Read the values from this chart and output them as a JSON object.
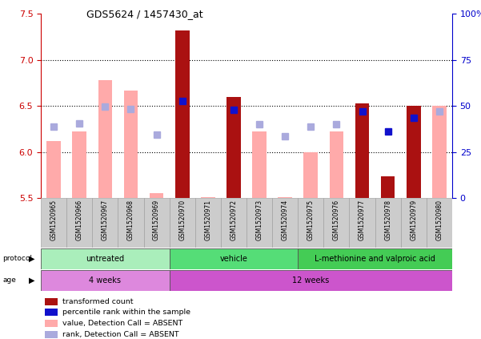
{
  "title": "GDS5624 / 1457430_at",
  "samples": [
    "GSM1520965",
    "GSM1520966",
    "GSM1520967",
    "GSM1520968",
    "GSM1520969",
    "GSM1520970",
    "GSM1520971",
    "GSM1520972",
    "GSM1520973",
    "GSM1520974",
    "GSM1520975",
    "GSM1520976",
    "GSM1520977",
    "GSM1520978",
    "GSM1520979",
    "GSM1520980"
  ],
  "transformed_count": [
    6.12,
    6.22,
    6.78,
    6.67,
    5.56,
    7.32,
    5.51,
    6.6,
    6.22,
    5.51,
    6.0,
    6.22,
    6.53,
    5.74,
    6.5,
    6.5
  ],
  "transformed_count_absent": [
    true,
    true,
    true,
    true,
    true,
    false,
    true,
    false,
    true,
    true,
    true,
    true,
    false,
    false,
    false,
    true
  ],
  "percentile_rank_val": [
    6.28,
    6.31,
    6.49,
    6.47,
    6.19,
    6.55,
    null,
    6.46,
    6.3,
    6.17,
    6.28,
    6.3,
    6.44,
    6.22,
    6.37,
    6.44
  ],
  "percentile_rank_absent": [
    true,
    true,
    true,
    true,
    true,
    false,
    true,
    false,
    true,
    true,
    true,
    true,
    false,
    false,
    false,
    true
  ],
  "ylim_left": [
    5.5,
    7.5
  ],
  "ylim_right": [
    0,
    100
  ],
  "yticks_left": [
    5.5,
    6.0,
    6.5,
    7.0,
    7.5
  ],
  "yticks_right": [
    0,
    25,
    50,
    75,
    100
  ],
  "ytick_labels_right": [
    "0",
    "25",
    "50",
    "75",
    "100%"
  ],
  "color_dark_red": "#aa1111",
  "color_light_pink": "#ffaaaa",
  "color_dark_blue": "#1111cc",
  "color_light_blue": "#aaaadd",
  "protocol_groups": [
    {
      "label": "untreated",
      "start": 0,
      "end": 4,
      "color": "#aaeebb"
    },
    {
      "label": "vehicle",
      "start": 5,
      "end": 9,
      "color": "#55dd77"
    },
    {
      "label": "L-methionine and valproic acid",
      "start": 10,
      "end": 15,
      "color": "#44cc55"
    }
  ],
  "age_groups": [
    {
      "label": "4 weeks",
      "start": 0,
      "end": 4,
      "color": "#dd88dd"
    },
    {
      "label": "12 weeks",
      "start": 5,
      "end": 15,
      "color": "#cc55cc"
    }
  ],
  "grid_yticks": [
    6.0,
    6.5,
    7.0
  ],
  "bar_width": 0.55
}
